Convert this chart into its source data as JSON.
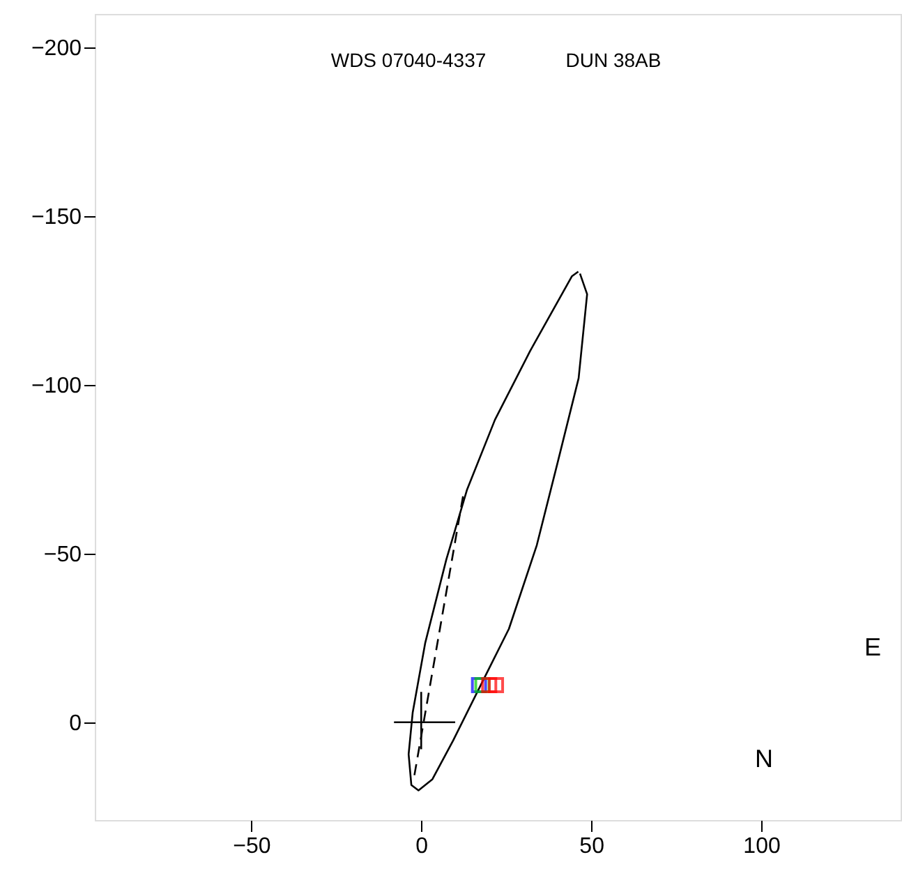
{
  "chart_data": {
    "type": "line",
    "title": "WDS 07040-4337",
    "subtitle": "DUN 38AB",
    "xlim": [
      -96,
      141
    ],
    "ylim": [
      29,
      -210
    ],
    "xticks": [
      {
        "value": -50,
        "label": "−50"
      },
      0,
      50,
      100
    ],
    "yticks": [
      {
        "value": -200,
        "label": "−200"
      },
      {
        "value": -150,
        "label": "−150"
      },
      {
        "value": -100,
        "label": "−100"
      },
      {
        "value": -50,
        "label": "−50"
      },
      0
    ],
    "grid": false,
    "marker": "none",
    "series": [
      {
        "color": "#000000",
        "line_style": "solid",
        "x": [
          46.7,
          48.8,
          46.3,
          40.2,
          34,
          25.8,
          17.6,
          9.4,
          3.3,
          -0.8,
          -2.9,
          -3.7,
          -2.5,
          1.2,
          7.4,
          13.5,
          21.7,
          32,
          40.2,
          44.3,
          46.2
        ],
        "values": [
          -133,
          -126.9,
          -102,
          -77.3,
          -52.5,
          -27.7,
          -11.2,
          5.4,
          16.9,
          20.2,
          18.6,
          9.5,
          -2.9,
          -23.6,
          -48.3,
          -69,
          -89.7,
          -110,
          -124.8,
          -132.2,
          -133.6
        ]
      },
      {
        "color": "#000000",
        "line_style": "dashed",
        "x": [
          12.3,
          -2
        ],
        "values": [
          -67,
          15.7
        ]
      },
      {
        "color": "#000000",
        "line_style": "solid",
        "x": [
          -8,
          10
        ],
        "values": [
          0,
          0
        ]
      },
      {
        "color": "#000000",
        "line_style": "solid",
        "x": [
          0,
          0
        ],
        "values": [
          -9,
          8
        ]
      },
      {
        "type": "scatter",
        "color": "#0000ff",
        "marker": "square",
        "x": [
          17
        ],
        "values": [
          -11
        ]
      },
      {
        "type": "scatter",
        "color": "#00cc00",
        "marker": "square",
        "x": [
          18
        ],
        "values": [
          -11
        ]
      },
      {
        "type": "scatter",
        "color": "#ff0000",
        "marker": "square",
        "x": [
          20,
          22
        ],
        "values": [
          -11,
          -11
        ]
      }
    ],
    "annotations": [
      "N",
      "E"
    ]
  }
}
